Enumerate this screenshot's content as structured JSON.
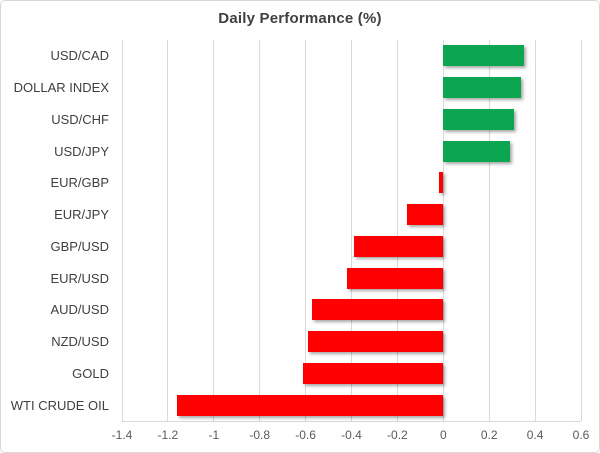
{
  "chart_data": {
    "type": "bar",
    "orientation": "horizontal",
    "title": "Daily Performance (%)",
    "xlabel": "",
    "ylabel": "",
    "categories": [
      "USD/CAD",
      "DOLLAR INDEX",
      "USD/CHF",
      "USD/JPY",
      "EUR/GBP",
      "EUR/JPY",
      "GBP/USD",
      "EUR/USD",
      "AUD/USD",
      "NZD/USD",
      "GOLD",
      "WTI CRUDE OIL"
    ],
    "values": [
      0.35,
      0.34,
      0.31,
      0.29,
      -0.02,
      -0.16,
      -0.39,
      -0.42,
      -0.57,
      -0.59,
      -0.61,
      -1.16
    ],
    "xlim": [
      -1.4,
      0.6
    ],
    "x_tick_step": 0.2,
    "x_tick_labels": [
      "-1.4",
      "-1.2",
      "-1",
      "-0.8",
      "-0.6",
      "-0.4",
      "-0.2",
      "0",
      "0.2",
      "0.4",
      "0.6"
    ],
    "grid": "vertical-on",
    "legend": "none",
    "colors": {
      "positive_bar": "#0BA64F",
      "negative_bar": "#FF0000",
      "gridline": "#D9D9D9",
      "axis_line": "#D9D9D9",
      "frame_border": "#D8D8D8",
      "title_text": "#404040",
      "category_text": "#404040",
      "tick_text": "#595959",
      "background": "#FFFFFF"
    }
  }
}
